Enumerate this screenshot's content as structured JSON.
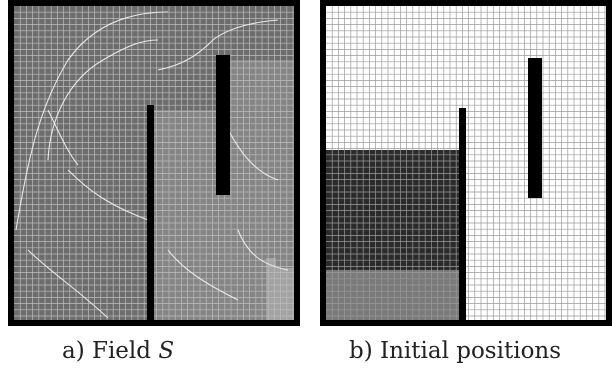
{
  "panels": [
    {
      "caption_prefix": "a) Field ",
      "caption_symbol": "S",
      "colors": {
        "border": "#000000",
        "grid_line": "#bdbdbd",
        "field_dark": "#6d6d6d",
        "field_mid": "#858585",
        "field_light": "#a3a3a3",
        "contour_line": "#e8e8e8",
        "wall": "#000000"
      }
    },
    {
      "caption_prefix": "b) Initial positions",
      "caption_symbol": "",
      "colors": {
        "border": "#000000",
        "grid_line": "#9a9a9a",
        "background": "#ffffff",
        "occupied_dense": "#2b2b2b",
        "occupied_sparse": "#7a7a7a",
        "wall": "#000000"
      }
    }
  ]
}
